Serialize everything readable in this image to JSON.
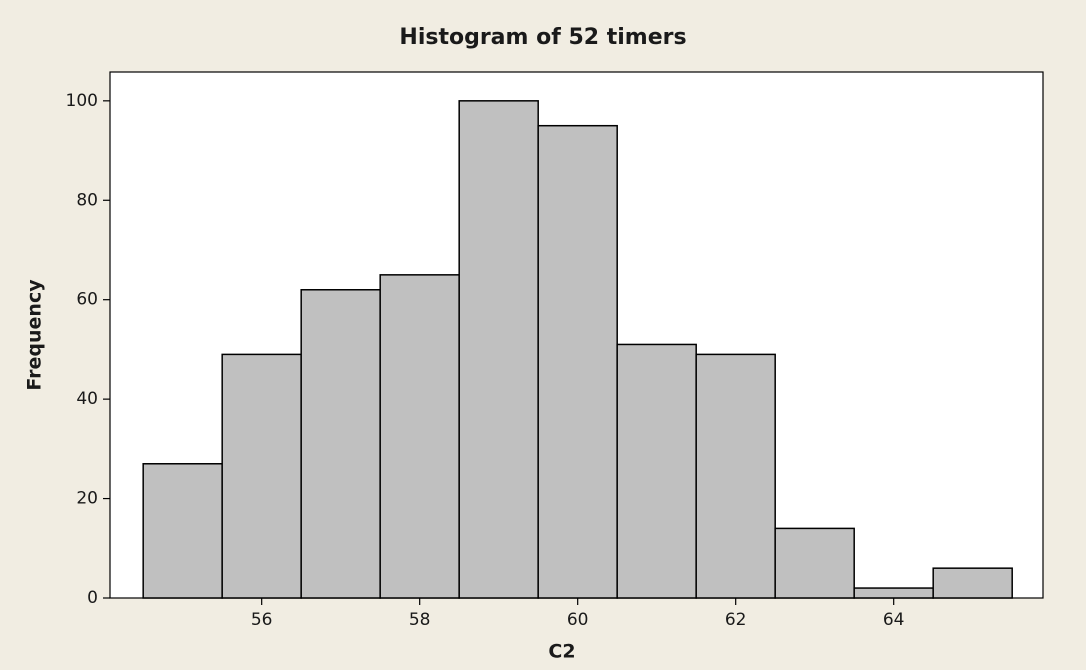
{
  "chart_data": {
    "type": "histogram",
    "title": "Histogram of 52 timers",
    "x_label": "C2",
    "y_label": "Frequency",
    "bins": [
      54.5,
      55.5,
      56.5,
      57.5,
      58.5,
      59.5,
      60.5,
      61.5,
      62.5,
      63.5,
      64.5,
      65.5
    ],
    "values": [
      27,
      49,
      62,
      65,
      100,
      95,
      51,
      49,
      14,
      2,
      6
    ],
    "color": "#c0c0c0",
    "xlim": [
      54.08,
      65.89
    ],
    "xticks": [
      56,
      58,
      60,
      62,
      64
    ],
    "ylim": [
      0,
      105.8
    ],
    "yticks": [
      0,
      20,
      40,
      60,
      80,
      100
    ]
  }
}
